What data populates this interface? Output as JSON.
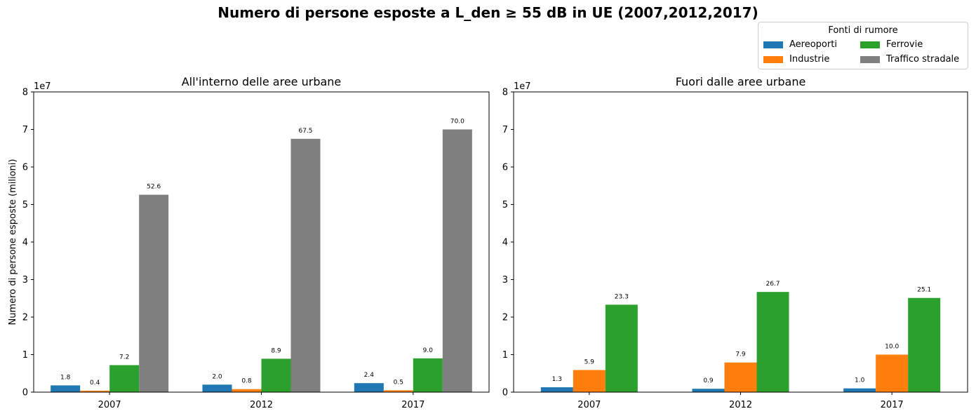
{
  "figure": {
    "title": "Numero di persone esposte a L_den ≥ 55 dB in UE (2007,2012,2017)"
  },
  "legend": {
    "title": "Fonti di rumore",
    "placement": "top-right",
    "items": [
      {
        "label": "Aereoporti",
        "color": "#1f77b4"
      },
      {
        "label": "Ferrovie",
        "color": "#2ca02c"
      },
      {
        "label": "Industrie",
        "color": "#ff7f0e"
      },
      {
        "label": "Traffico stradale",
        "color": "#7f7f7f"
      }
    ]
  },
  "chart_data": [
    {
      "type": "bar",
      "title": "All'interno delle aree urbane",
      "xlabel": "",
      "ylabel": "Numero di persone esposte (milioni)",
      "offset_label": "1e7",
      "ylim": [
        0,
        80000000
      ],
      "yticks": [
        0,
        10000000,
        20000000,
        30000000,
        40000000,
        50000000,
        60000000,
        70000000,
        80000000
      ],
      "ytick_labels": [
        "0",
        "1",
        "2",
        "3",
        "4",
        "5",
        "6",
        "7",
        "8"
      ],
      "categories": [
        "2007",
        "2012",
        "2017"
      ],
      "series": [
        {
          "name": "Aereoporti",
          "color": "#1f77b4",
          "values": [
            1800000,
            2000000,
            2400000
          ],
          "labels": [
            "1.8",
            "2.0",
            "2.4"
          ]
        },
        {
          "name": "Industrie",
          "color": "#ff7f0e",
          "values": [
            400000,
            800000,
            500000
          ],
          "labels": [
            "0.4",
            "0.8",
            "0.5"
          ]
        },
        {
          "name": "Ferrovie",
          "color": "#2ca02c",
          "values": [
            7200000,
            8900000,
            9000000
          ],
          "labels": [
            "7.2",
            "8.9",
            "9.0"
          ]
        },
        {
          "name": "Traffico stradale",
          "color": "#7f7f7f",
          "values": [
            52600000,
            67500000,
            70000000
          ],
          "labels": [
            "52.6",
            "67.5",
            "70.0"
          ]
        }
      ]
    },
    {
      "type": "bar",
      "title": "Fuori dalle aree urbane",
      "xlabel": "",
      "ylabel": "",
      "offset_label": "1e7",
      "ylim": [
        0,
        80000000
      ],
      "yticks": [
        0,
        10000000,
        20000000,
        30000000,
        40000000,
        50000000,
        60000000,
        70000000,
        80000000
      ],
      "ytick_labels": [
        "0",
        "1",
        "2",
        "3",
        "4",
        "5",
        "6",
        "7",
        "8"
      ],
      "categories": [
        "2007",
        "2012",
        "2017"
      ],
      "series": [
        {
          "name": "Aereoporti",
          "color": "#1f77b4",
          "values": [
            1300000,
            900000,
            1000000
          ],
          "labels": [
            "1.3",
            "0.9",
            "1.0"
          ]
        },
        {
          "name": "Industrie",
          "color": "#ff7f0e",
          "values": [
            5900000,
            7900000,
            10000000
          ],
          "labels": [
            "5.9",
            "7.9",
            "10.0"
          ]
        },
        {
          "name": "Ferrovie",
          "color": "#2ca02c",
          "values": [
            23300000,
            26700000,
            25100000
          ],
          "labels": [
            "23.3",
            "26.7",
            "25.1"
          ]
        }
      ]
    }
  ]
}
